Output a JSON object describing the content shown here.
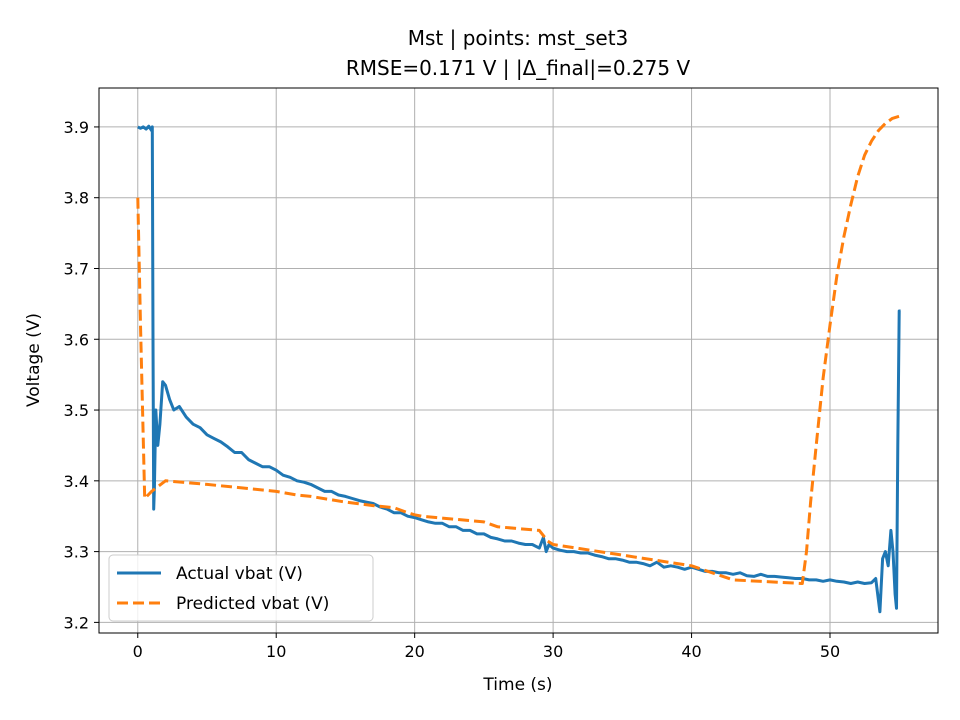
{
  "chart_data": {
    "type": "line",
    "title": "Mst | points: mst_set3",
    "subtitle": "RMSE=0.171 V | |Δ_final|=0.275 V",
    "xlabel": "Time (s)",
    "ylabel": "Voltage (V)",
    "xlim": [
      -2.8,
      57.8
    ],
    "ylim": [
      3.185,
      3.955
    ],
    "xticks": [
      0,
      10,
      20,
      30,
      40,
      50
    ],
    "yticks": [
      3.2,
      3.3,
      3.4,
      3.5,
      3.6,
      3.7,
      3.8,
      3.9
    ],
    "xtick_labels": [
      "0",
      "10",
      "20",
      "30",
      "40",
      "50"
    ],
    "ytick_labels": [
      "3.2",
      "3.3",
      "3.4",
      "3.5",
      "3.6",
      "3.7",
      "3.8",
      "3.9"
    ],
    "grid": true,
    "legend_position": "lower-left",
    "series": [
      {
        "name": "Actual vbat (V)",
        "color": "#1f77b4",
        "style": "solid",
        "x": [
          0,
          0.2,
          0.4,
          0.6,
          0.8,
          1.0,
          1.05,
          1.1,
          1.15,
          1.2,
          1.3,
          1.45,
          1.6,
          1.8,
          2.0,
          2.3,
          2.6,
          3.0,
          3.5,
          4.0,
          4.5,
          5.0,
          5.5,
          6.0,
          6.5,
          7.0,
          7.5,
          8.0,
          8.5,
          9.0,
          9.5,
          10.0,
          10.5,
          11.0,
          11.5,
          12.0,
          12.5,
          13.0,
          13.5,
          14.0,
          14.5,
          15.0,
          15.5,
          16.0,
          16.5,
          17.0,
          17.5,
          18.0,
          18.5,
          19.0,
          19.5,
          20.0,
          20.5,
          21.0,
          21.5,
          22.0,
          22.5,
          23.0,
          23.5,
          24.0,
          24.5,
          25.0,
          25.5,
          26.0,
          26.5,
          27.0,
          27.5,
          28.0,
          28.5,
          29.0,
          29.3,
          29.5,
          29.7,
          30.0,
          30.5,
          31.0,
          31.5,
          32.0,
          32.5,
          33.0,
          33.5,
          34.0,
          34.5,
          35.0,
          35.5,
          36.0,
          36.5,
          37.0,
          37.5,
          38.0,
          38.5,
          39.0,
          39.5,
          40.0,
          40.5,
          41.0,
          41.5,
          42.0,
          42.5,
          43.0,
          43.5,
          44.0,
          44.5,
          45.0,
          45.5,
          46.0,
          46.5,
          47.0,
          47.5,
          48.0,
          48.5,
          49.0,
          49.5,
          50.0,
          50.5,
          51.0,
          51.5,
          52.0,
          52.5,
          53.0,
          53.3,
          53.6,
          53.8,
          54.0,
          54.2,
          54.4,
          54.55,
          54.7,
          54.8,
          54.9,
          55.0,
          55.1
        ],
        "y": [
          3.9,
          3.898,
          3.9,
          3.897,
          3.901,
          3.895,
          3.9,
          3.6,
          3.36,
          3.39,
          3.5,
          3.45,
          3.48,
          3.54,
          3.535,
          3.515,
          3.5,
          3.505,
          3.49,
          3.48,
          3.475,
          3.465,
          3.46,
          3.455,
          3.448,
          3.44,
          3.44,
          3.43,
          3.425,
          3.42,
          3.42,
          3.415,
          3.408,
          3.405,
          3.4,
          3.398,
          3.395,
          3.39,
          3.385,
          3.385,
          3.38,
          3.378,
          3.375,
          3.372,
          3.37,
          3.368,
          3.363,
          3.36,
          3.355,
          3.355,
          3.35,
          3.348,
          3.345,
          3.342,
          3.34,
          3.34,
          3.335,
          3.335,
          3.33,
          3.33,
          3.325,
          3.325,
          3.32,
          3.318,
          3.315,
          3.315,
          3.312,
          3.31,
          3.31,
          3.305,
          3.32,
          3.3,
          3.31,
          3.305,
          3.302,
          3.3,
          3.3,
          3.298,
          3.298,
          3.295,
          3.293,
          3.29,
          3.29,
          3.288,
          3.285,
          3.285,
          3.283,
          3.28,
          3.285,
          3.278,
          3.28,
          3.278,
          3.275,
          3.278,
          3.275,
          3.272,
          3.272,
          3.27,
          3.27,
          3.268,
          3.27,
          3.266,
          3.265,
          3.268,
          3.265,
          3.265,
          3.264,
          3.263,
          3.262,
          3.262,
          3.26,
          3.26,
          3.258,
          3.26,
          3.258,
          3.257,
          3.255,
          3.257,
          3.255,
          3.256,
          3.262,
          3.215,
          3.29,
          3.3,
          3.28,
          3.33,
          3.3,
          3.24,
          3.22,
          3.45,
          3.64,
          3.64
        ]
      },
      {
        "name": "Predicted vbat (V)",
        "color": "#ff7f0e",
        "style": "dashed",
        "x": [
          0,
          0.2,
          0.5,
          1.0,
          2.0,
          5.0,
          10.0,
          11.5,
          12.5,
          15.0,
          17.0,
          18.5,
          19.5,
          20.0,
          20.5,
          25.0,
          26.0,
          29.0,
          29.6,
          30.0,
          35.0,
          40.0,
          43.0,
          48.0,
          48.3,
          48.6,
          49.0,
          49.5,
          50.0,
          50.5,
          51.0,
          51.5,
          52.0,
          52.5,
          53.0,
          53.5,
          54.0,
          54.5,
          55.0
        ],
        "y": [
          3.8,
          3.62,
          3.375,
          3.385,
          3.4,
          3.395,
          3.385,
          3.38,
          3.378,
          3.37,
          3.365,
          3.362,
          3.355,
          3.352,
          3.35,
          3.342,
          3.335,
          3.33,
          3.315,
          3.31,
          3.295,
          3.28,
          3.26,
          3.255,
          3.3,
          3.37,
          3.45,
          3.545,
          3.62,
          3.69,
          3.745,
          3.79,
          3.83,
          3.86,
          3.88,
          3.895,
          3.905,
          3.912,
          3.915
        ]
      }
    ]
  }
}
